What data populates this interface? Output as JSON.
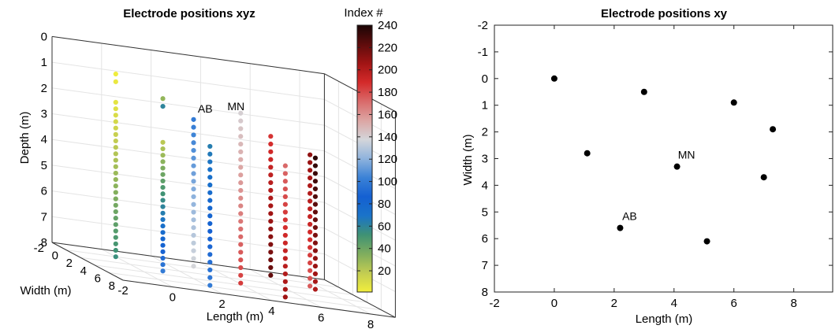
{
  "chart_data": [
    {
      "type": "scatter3d",
      "title": "Electrode positions xyz",
      "xlabel": "Length (m)",
      "ylabel": "Width (m)",
      "zlabel": "Depth (m)",
      "xlim": [
        -2,
        9
      ],
      "ylim": [
        -2,
        8
      ],
      "zlim": [
        0,
        8
      ],
      "xticks": [
        "-2",
        "0",
        "2",
        "4",
        "6",
        "8"
      ],
      "yticks": [
        "-2",
        "0",
        "2",
        "4",
        "6",
        "8"
      ],
      "zticks": [
        "0",
        "1",
        "2",
        "3",
        "4",
        "5",
        "6",
        "7",
        "8"
      ],
      "grid": true,
      "boreholes": [
        {
          "x": 0.0,
          "y": 0.0,
          "depths": [
            0.9,
            1.2,
            2.0,
            2.25,
            2.5,
            2.75,
            3.0,
            3.25,
            3.5,
            3.75,
            4.0,
            4.25,
            4.5,
            4.75,
            5.0,
            5.25,
            5.5,
            5.75,
            6.0,
            6.25,
            6.5,
            6.75,
            7.0,
            7.25,
            7.5,
            7.75,
            8.0
          ],
          "color_index": [
            2,
            4,
            6,
            8,
            10,
            12,
            14,
            16,
            18,
            20,
            22,
            24,
            26,
            28,
            30,
            32,
            34,
            36,
            38,
            40,
            42,
            44,
            46,
            48,
            50,
            52,
            54
          ]
        },
        {
          "x": 1.1,
          "y": 2.8,
          "depths": [
            1.3,
            1.6,
            3.0,
            3.25,
            3.5,
            3.75,
            4.0,
            4.25,
            4.5,
            4.75,
            5.0,
            5.25,
            5.5,
            5.75,
            6.0,
            6.25,
            6.5,
            6.75,
            7.0,
            7.25,
            7.5,
            7.75,
            8.0
          ],
          "color_index": [
            30,
            60,
            20,
            24,
            28,
            32,
            36,
            40,
            44,
            48,
            52,
            56,
            60,
            64,
            68,
            72,
            76,
            80,
            84,
            88,
            92,
            96,
            100
          ]
        },
        {
          "x": 2.2,
          "y": 5.6,
          "depths": [
            2.6,
            2.9,
            3.2,
            3.5,
            3.8,
            4.1,
            4.4,
            4.7,
            5.0,
            5.3,
            5.6,
            5.9,
            6.2,
            6.5,
            6.8,
            7.1,
            7.4,
            7.7,
            8.0
          ],
          "color_index": [
            64,
            66,
            68,
            70,
            72,
            74,
            76,
            78,
            80,
            82,
            84,
            86,
            88,
            90,
            92,
            94,
            96,
            98,
            100
          ]
        },
        {
          "x": 3.0,
          "y": 0.5,
          "depths": [
            2.2,
            2.5,
            2.8,
            3.1,
            3.4,
            3.7,
            4.0,
            4.3,
            4.6,
            4.9,
            5.2,
            5.5,
            5.8,
            6.1,
            6.4,
            6.7,
            7.0,
            7.3,
            7.6,
            7.9
          ],
          "color_index": [
            100,
            102,
            104,
            106,
            108,
            110,
            112,
            114,
            116,
            118,
            120,
            122,
            124,
            126,
            128,
            130,
            132,
            134,
            136,
            138
          ]
        },
        {
          "x": 4.1,
          "y": 3.3,
          "depths": [
            1.4,
            1.7,
            2.0,
            2.3,
            2.6,
            2.9,
            3.2,
            3.5,
            3.8,
            4.1,
            4.4,
            4.7,
            5.0,
            5.3,
            5.6,
            5.9,
            6.2,
            6.5,
            6.8,
            7.1,
            7.4,
            7.7,
            8.0
          ],
          "color_index": [
            140,
            142,
            144,
            146,
            148,
            150,
            152,
            154,
            156,
            158,
            160,
            162,
            164,
            166,
            168,
            170,
            172,
            174,
            176,
            178,
            180,
            182,
            184
          ]
        },
        {
          "x": 5.1,
          "y": 6.1,
          "depths": [
            2.9,
            3.2,
            3.5,
            3.8,
            4.1,
            4.4,
            4.7,
            5.0,
            5.3,
            5.6,
            5.9,
            6.2,
            6.5,
            6.8,
            7.1,
            7.4,
            7.7,
            8.0
          ],
          "color_index": [
            172,
            174,
            176,
            178,
            180,
            182,
            184,
            186,
            188,
            190,
            192,
            194,
            196,
            198,
            200,
            202,
            204,
            206
          ]
        },
        {
          "x": 6.0,
          "y": 0.9,
          "depths": [
            2.4,
            2.7,
            3.0,
            3.3,
            3.6,
            3.9,
            4.2,
            4.5,
            4.8,
            5.1,
            5.4,
            5.7,
            6.0,
            6.3,
            6.6,
            6.9,
            7.2,
            7.5,
            7.8
          ],
          "color_index": [
            186,
            188,
            190,
            192,
            194,
            196,
            198,
            200,
            202,
            204,
            206,
            208,
            210,
            212,
            214,
            216,
            218,
            220,
            222
          ]
        },
        {
          "x": 7.0,
          "y": 3.7,
          "depths": [
            2.7,
            3.0,
            3.3,
            3.6,
            3.9,
            4.2,
            4.5,
            4.8,
            5.1,
            5.4,
            5.7,
            6.0,
            6.3,
            6.6,
            6.9,
            7.2,
            7.5,
            7.8
          ],
          "color_index": [
            236,
            234,
            232,
            230,
            228,
            226,
            224,
            222,
            220,
            218,
            216,
            214,
            212,
            210,
            208,
            206,
            204,
            202
          ]
        },
        {
          "x": 7.3,
          "y": 1.9,
          "depths": [
            2.8,
            3.1,
            3.4,
            3.7,
            4.0,
            4.3,
            4.6,
            4.9,
            5.2,
            5.5,
            5.8,
            6.1,
            6.4,
            6.7,
            7.0,
            7.3,
            7.6,
            7.9
          ],
          "color_index": [
            210,
            208,
            206,
            204,
            202,
            200,
            198,
            196,
            194,
            192,
            190,
            188,
            186,
            184,
            182,
            180,
            178,
            176
          ]
        }
      ],
      "annotations": [
        {
          "text": "AB",
          "x": 2.2,
          "y": 5.6,
          "z": 1.1
        },
        {
          "text": "MN",
          "x": 4.1,
          "y": 3.3,
          "z": 1.1
        }
      ],
      "colorbar": {
        "title": "Index #",
        "range": [
          1,
          240
        ],
        "ticks": [
          "20",
          "40",
          "60",
          "80",
          "100",
          "120",
          "140",
          "160",
          "180",
          "200",
          "220",
          "240"
        ],
        "colors": [
          "#f2ee3c",
          "#c2cc52",
          "#7fad5e",
          "#3f9274",
          "#1a73c9",
          "#1460d2",
          "#3b82d6",
          "#8fb3dd",
          "#d4d6da",
          "#dca5a3",
          "#d96a6a",
          "#d42a2a",
          "#a11414",
          "#5e0c0c",
          "#1a0505"
        ]
      }
    },
    {
      "type": "scatter",
      "title": "Electrode positions xy",
      "xlabel": "Length (m)",
      "ylabel": "Width (m)",
      "xlim": [
        -2,
        9.3
      ],
      "ylim": [
        -2,
        8
      ],
      "xticks": [
        "-2",
        "0",
        "2",
        "4",
        "6",
        "8"
      ],
      "yticks": [
        "-2",
        "-1",
        "0",
        "1",
        "2",
        "3",
        "4",
        "5",
        "6",
        "7",
        "8"
      ],
      "y_reversed": true,
      "grid": false,
      "points": [
        {
          "x": 0.0,
          "y": 0.0
        },
        {
          "x": 3.0,
          "y": 0.5
        },
        {
          "x": 6.0,
          "y": 0.9
        },
        {
          "x": 7.3,
          "y": 1.9
        },
        {
          "x": 1.1,
          "y": 2.8
        },
        {
          "x": 4.1,
          "y": 3.3
        },
        {
          "x": 7.0,
          "y": 3.7
        },
        {
          "x": 2.2,
          "y": 5.6
        },
        {
          "x": 5.1,
          "y": 6.1
        }
      ],
      "point_color": "#000000",
      "annotations": [
        {
          "text": "MN",
          "x": 4.1,
          "y": 3.3
        },
        {
          "text": "AB",
          "x": 2.2,
          "y": 5.6
        }
      ]
    }
  ]
}
